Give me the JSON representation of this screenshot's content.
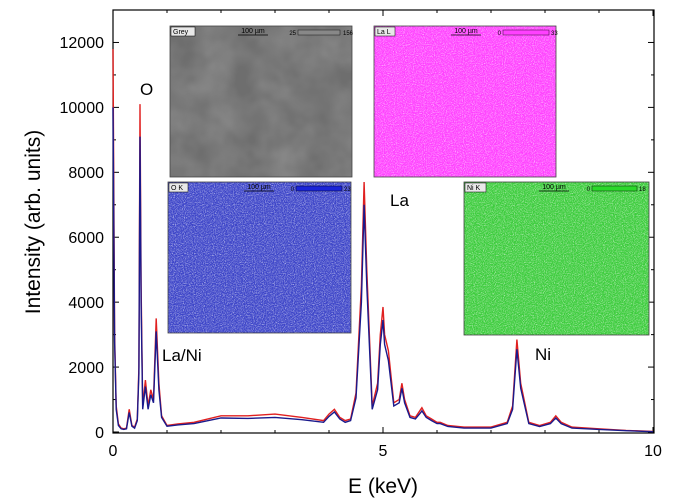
{
  "chart_data": {
    "type": "line",
    "title": "",
    "xlabel": "E (keV)",
    "ylabel": "Intensity (arb. units)",
    "xlim": [
      0,
      10
    ],
    "ylim": [
      0,
      13000
    ],
    "xticks": [
      "0",
      "5",
      "10"
    ],
    "yticks": [
      "0",
      "2000",
      "4000",
      "6000",
      "8000",
      "10000",
      "12000"
    ],
    "grid": false,
    "series": [
      {
        "color": "#e02020",
        "x": [
          0.0,
          0.03,
          0.06,
          0.1,
          0.15,
          0.2,
          0.25,
          0.3,
          0.35,
          0.4,
          0.45,
          0.48,
          0.5,
          0.52,
          0.55,
          0.6,
          0.65,
          0.7,
          0.75,
          0.8,
          0.85,
          0.9,
          1.0,
          1.2,
          1.5,
          2.0,
          2.5,
          3.0,
          3.5,
          3.9,
          4.0,
          4.1,
          4.2,
          4.3,
          4.4,
          4.5,
          4.6,
          4.65,
          4.7,
          4.8,
          4.9,
          4.95,
          5.0,
          5.03,
          5.1,
          5.2,
          5.3,
          5.35,
          5.4,
          5.5,
          5.6,
          5.7,
          5.72,
          5.8,
          5.9,
          6.0,
          6.06,
          6.2,
          6.5,
          7.0,
          7.3,
          7.4,
          7.48,
          7.55,
          7.7,
          7.9,
          8.1,
          8.2,
          8.3,
          8.5,
          9.0,
          9.5,
          10.0
        ],
        "y": [
          11800,
          3000,
          800,
          250,
          120,
          100,
          120,
          700,
          200,
          150,
          400,
          2000,
          10100,
          4500,
          800,
          1600,
          800,
          1300,
          1000,
          3500,
          1500,
          500,
          200,
          250,
          300,
          500,
          500,
          550,
          450,
          350,
          550,
          700,
          450,
          350,
          400,
          1200,
          4500,
          7700,
          5000,
          800,
          1500,
          3000,
          3850,
          3000,
          2500,
          900,
          1000,
          1500,
          1000,
          500,
          450,
          700,
          750,
          500,
          400,
          300,
          300,
          200,
          150,
          150,
          300,
          800,
          2850,
          1500,
          300,
          200,
          300,
          500,
          300,
          150,
          100,
          50,
          20
        ]
      },
      {
        "color": "#1a1a8c",
        "x": [
          0.0,
          0.03,
          0.06,
          0.1,
          0.15,
          0.2,
          0.25,
          0.3,
          0.35,
          0.4,
          0.45,
          0.48,
          0.5,
          0.52,
          0.55,
          0.6,
          0.65,
          0.7,
          0.75,
          0.8,
          0.85,
          0.9,
          1.0,
          1.2,
          1.5,
          2.0,
          2.5,
          3.0,
          3.5,
          3.9,
          4.0,
          4.1,
          4.2,
          4.3,
          4.4,
          4.5,
          4.6,
          4.65,
          4.7,
          4.8,
          4.9,
          4.95,
          5.0,
          5.03,
          5.1,
          5.2,
          5.3,
          5.35,
          5.4,
          5.5,
          5.6,
          5.7,
          5.72,
          5.8,
          5.9,
          6.0,
          6.06,
          6.2,
          6.5,
          7.0,
          7.3,
          7.4,
          7.48,
          7.55,
          7.7,
          7.9,
          8.1,
          8.2,
          8.3,
          8.5,
          9.0,
          9.5,
          10.0
        ],
        "y": [
          10000,
          2800,
          700,
          200,
          100,
          80,
          100,
          600,
          180,
          120,
          350,
          1800,
          9100,
          4000,
          700,
          1400,
          700,
          1150,
          900,
          3100,
          1300,
          450,
          180,
          220,
          260,
          430,
          420,
          450,
          380,
          300,
          480,
          620,
          400,
          300,
          350,
          1050,
          4000,
          7000,
          4500,
          700,
          1300,
          2700,
          3450,
          2700,
          2200,
          800,
          900,
          1350,
          900,
          450,
          400,
          600,
          650,
          450,
          350,
          260,
          260,
          170,
          120,
          120,
          260,
          700,
          2550,
          1350,
          260,
          170,
          260,
          430,
          260,
          120,
          80,
          40,
          10
        ]
      }
    ],
    "annotations": [
      "O",
      "La/Ni",
      "La",
      "Ni"
    ],
    "insets": [
      {
        "label": "Grey",
        "scale": "100 µm",
        "cbar_min": "25",
        "cbar_max": "156",
        "color": "#6e6e6e"
      },
      {
        "label": "La L",
        "scale": "100 µm",
        "cbar_min": "0",
        "cbar_max": "33",
        "color": "#ff40ff"
      },
      {
        "label": "O K",
        "scale": "100 µm",
        "cbar_min": "0",
        "cbar_max": "23",
        "color": "#3c44c8"
      },
      {
        "label": "Ni K",
        "scale": "100 µm",
        "cbar_min": "0",
        "cbar_max": "18",
        "color": "#3ccc3c"
      }
    ]
  }
}
